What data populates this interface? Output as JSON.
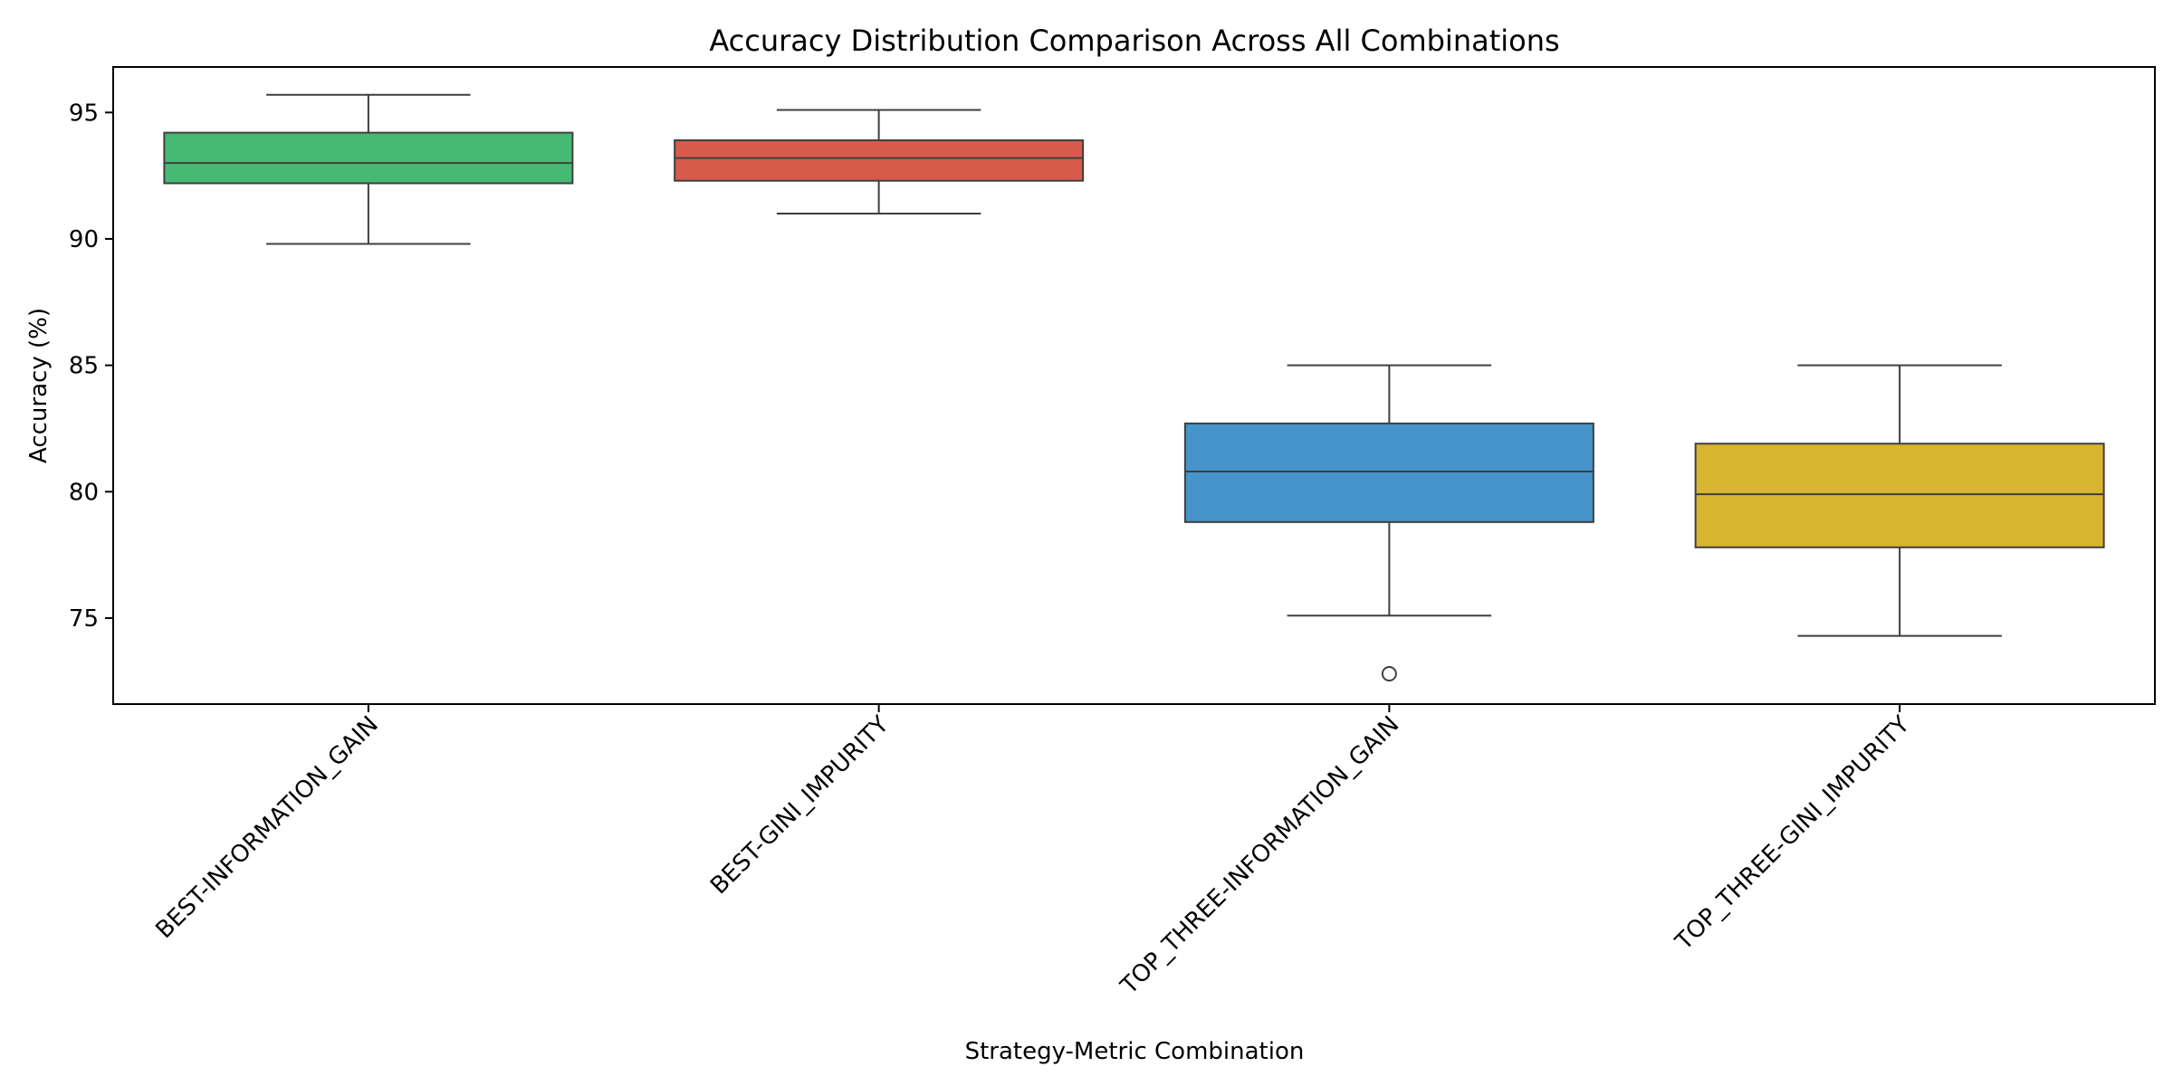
{
  "chart_data": {
    "type": "box",
    "title": "Accuracy Distribution Comparison Across All Combinations",
    "xlabel": "Strategy-Metric Combination",
    "ylabel": "Accuracy (%)",
    "ylim": [
      71.6,
      96.8
    ],
    "yticks": [
      75,
      80,
      85,
      90,
      95
    ],
    "grid": false,
    "categories": [
      "BEST-INFORMATION_GAIN",
      "BEST-GINI_IMPURITY",
      "TOP_THREE-INFORMATION_GAIN",
      "TOP_THREE-GINI_IMPURITY"
    ],
    "series": [
      {
        "color": "#45ba74",
        "whisker_low": 89.8,
        "q1": 92.2,
        "median": 93.0,
        "q3": 94.2,
        "whisker_high": 95.7,
        "outliers": []
      },
      {
        "color": "#d65b4b",
        "whisker_low": 91.0,
        "q1": 92.3,
        "median": 93.2,
        "q3": 93.9,
        "whisker_high": 95.1,
        "outliers": []
      },
      {
        "color": "#4694c9",
        "whisker_low": 75.1,
        "q1": 78.8,
        "median": 80.8,
        "q3": 82.7,
        "whisker_high": 85.0,
        "outliers": [
          72.8
        ]
      },
      {
        "color": "#d8b52e",
        "whisker_low": 74.3,
        "q1": 77.8,
        "median": 79.9,
        "q3": 81.9,
        "whisker_high": 85.0,
        "outliers": []
      }
    ]
  }
}
